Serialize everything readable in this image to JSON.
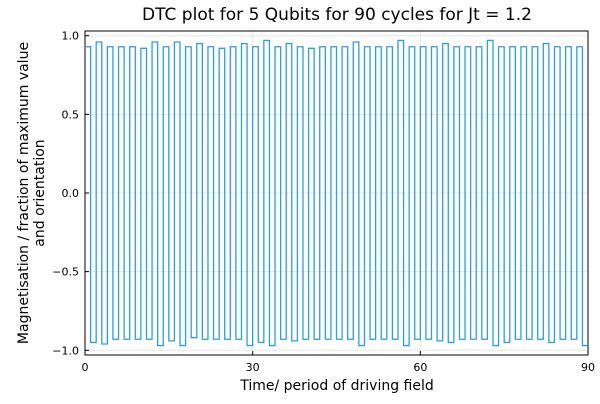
{
  "chart_data": {
    "type": "line",
    "title": "DTC plot for 5 Qubits for 90 cycles for Jt = 1.2",
    "xlabel": "Time/ period of driving field",
    "ylabel_lines": [
      "Magnetisation / fraction of maximum value",
      "and orientation"
    ],
    "xlim": [
      0,
      90
    ],
    "ylim": [
      -1.03,
      1.03
    ],
    "xticks": [
      0,
      30,
      60,
      90
    ],
    "xtick_labels": [
      "0",
      "30",
      "60",
      "90"
    ],
    "yticks": [
      -1.0,
      -0.5,
      0.0,
      0.5,
      1.0
    ],
    "ytick_labels": [
      "−1.0",
      "−0.5",
      "0.0",
      "0.5",
      "1.0"
    ],
    "grid": true,
    "legend": false,
    "step": true,
    "series": [
      {
        "color": "#2c9fd9",
        "x": [
          0,
          1,
          2,
          3,
          4,
          5,
          6,
          7,
          8,
          9,
          10,
          11,
          12,
          13,
          14,
          15,
          16,
          17,
          18,
          19,
          20,
          21,
          22,
          23,
          24,
          25,
          26,
          27,
          28,
          29,
          30,
          31,
          32,
          33,
          34,
          35,
          36,
          37,
          38,
          39,
          40,
          41,
          42,
          43,
          44,
          45,
          46,
          47,
          48,
          49,
          50,
          51,
          52,
          53,
          54,
          55,
          56,
          57,
          58,
          59,
          60,
          61,
          62,
          63,
          64,
          65,
          66,
          67,
          68,
          69,
          70,
          71,
          72,
          73,
          74,
          75,
          76,
          77,
          78,
          79,
          80,
          81,
          82,
          83,
          84,
          85,
          86,
          87,
          88,
          89,
          90
        ],
        "y": [
          0.93,
          -0.95,
          0.96,
          -0.96,
          0.93,
          -0.93,
          0.93,
          -0.93,
          0.93,
          -0.93,
          0.92,
          -0.93,
          0.96,
          -0.97,
          0.93,
          -0.94,
          0.96,
          -0.97,
          0.93,
          -0.92,
          0.95,
          -0.93,
          0.93,
          -0.93,
          0.92,
          -0.93,
          0.93,
          -0.93,
          0.95,
          -0.97,
          0.93,
          -0.95,
          0.97,
          -0.97,
          0.93,
          -0.93,
          0.95,
          -0.94,
          0.93,
          -0.93,
          0.92,
          -0.93,
          0.93,
          -0.93,
          0.93,
          -0.93,
          0.93,
          -0.93,
          0.96,
          -0.97,
          0.93,
          -0.93,
          0.93,
          -0.93,
          0.93,
          -0.93,
          0.97,
          -0.97,
          0.93,
          -0.93,
          0.93,
          -0.93,
          0.93,
          -0.94,
          0.95,
          -0.95,
          0.93,
          -0.93,
          0.93,
          -0.93,
          0.93,
          -0.93,
          0.97,
          -0.97,
          0.93,
          -0.95,
          0.93,
          -0.93,
          0.93,
          -0.93,
          0.93,
          -0.93,
          0.95,
          -0.95,
          0.93,
          -0.93,
          0.93,
          -0.93,
          0.93,
          -0.97,
          -0.97
        ]
      }
    ]
  }
}
